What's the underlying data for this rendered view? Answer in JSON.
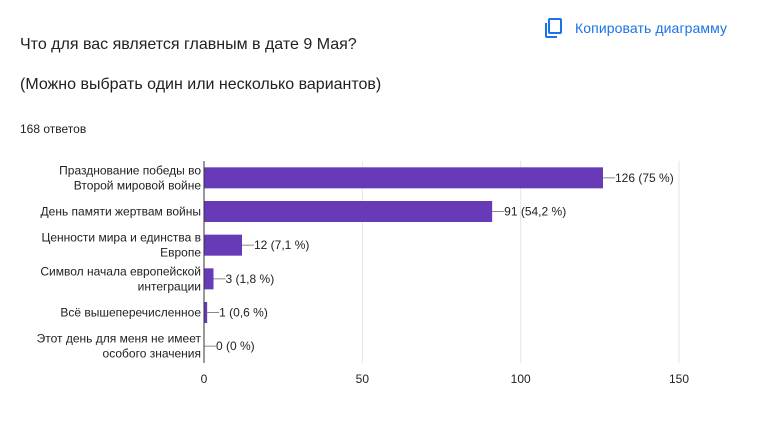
{
  "header": {
    "copy_button_label": "Копировать диаграмму",
    "copy_icon": "copy-icon"
  },
  "question": {
    "title": "Что для вас является главным в дате 9 Мая?",
    "subtitle": "(Можно выбрать один или несколько вариантов)",
    "responses": "168 ответов"
  },
  "colors": {
    "bar": "#673ab7",
    "accent": "#1a73e8",
    "grid": "#e6e6e6",
    "axis": "#333333",
    "text": "#202124"
  },
  "chart_data": {
    "type": "bar",
    "orientation": "horizontal",
    "categories": [
      [
        "Празднование победы во",
        "Второй мировой войне"
      ],
      [
        "День памяти жертвам войны"
      ],
      [
        "Ценности мира и единства в",
        "Европе"
      ],
      [
        "Символ начала европейской",
        "интеграции"
      ],
      [
        "Всё вышеперечисленное"
      ],
      [
        "Этот день для меня не имеет",
        "особого значения"
      ]
    ],
    "values": [
      126,
      91,
      12,
      3,
      1,
      0
    ],
    "data_labels": [
      "126 (75 %)",
      "91 (54,2 %)",
      "12 (7,1 %)",
      "3 (1,8 %)",
      "1 (0,6 %)",
      "0 (0 %)"
    ],
    "xlim": [
      0,
      150
    ],
    "xticks": [
      0,
      50,
      100,
      150
    ],
    "grid": true,
    "title": "",
    "xlabel": "",
    "ylabel": ""
  }
}
